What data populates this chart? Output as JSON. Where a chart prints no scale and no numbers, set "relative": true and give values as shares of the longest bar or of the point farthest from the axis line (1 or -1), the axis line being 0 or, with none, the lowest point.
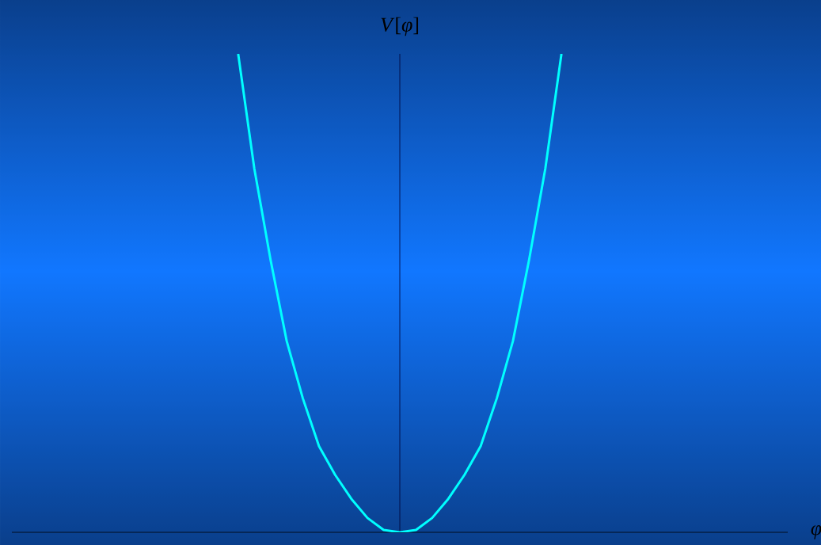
{
  "chart_data": {
    "type": "line",
    "relative": true,
    "xlabel": "*φ*",
    "ylabel": "*V*[*φ*]",
    "categories": [
      null,
      null,
      null,
      null,
      null,
      null,
      null,
      null,
      null,
      null,
      null,
      null,
      null,
      null,
      null,
      null,
      null,
      null,
      null,
      null,
      null,
      null,
      null,
      null,
      null,
      null,
      null,
      null,
      null,
      null,
      null,
      null,
      null,
      null,
      null,
      null,
      null,
      null,
      null,
      null,
      null,
      null,
      null,
      null,
      null,
      null,
      null,
      null,
      null
    ],
    "series": [
      {
        "color": "#00ffff",
        "values": [
          null,
          null,
          null,
          null,
          null,
          null,
          null,
          null,
          null,
          null,
          null,
          null,
          null,
          null,
          1,
          0.76,
          0.57,
          0.4,
          0.28,
          0.18,
          0.12,
          0.07,
          0.03,
          0.005,
          0,
          0.005,
          0.03,
          0.07,
          0.12,
          0.18,
          0.28,
          0.4,
          0.57,
          0.76,
          1,
          null,
          null,
          null,
          null,
          null,
          null,
          null,
          null,
          null,
          null,
          null,
          null,
          null,
          null
        ]
      }
    ]
  }
}
